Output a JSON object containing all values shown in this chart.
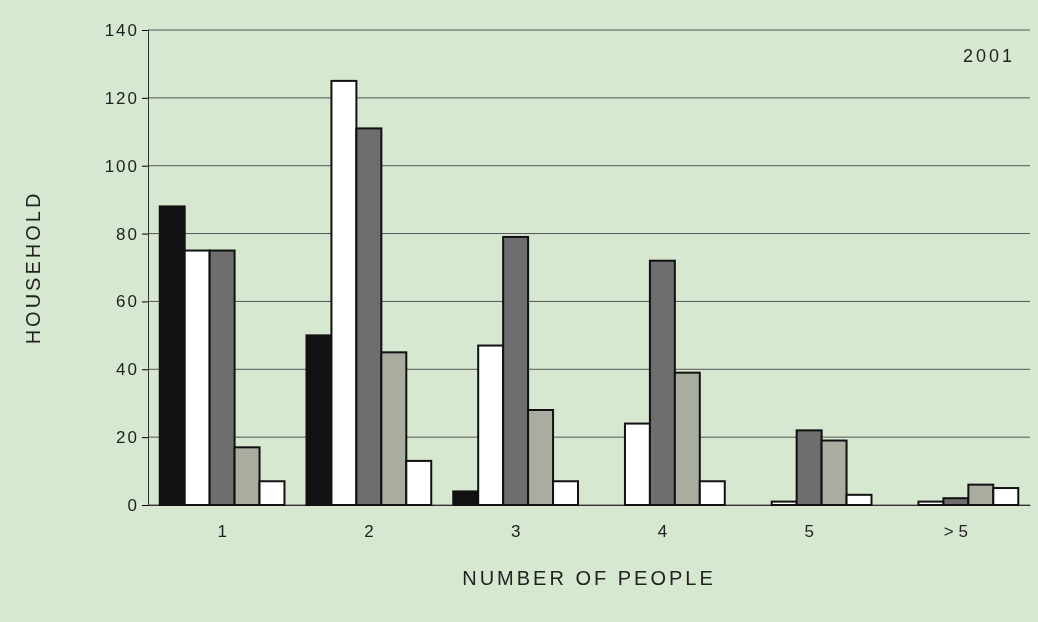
{
  "chart_data": {
    "type": "bar",
    "xlabel": "NUMBER OF PEOPLE",
    "ylabel": "HOUSEHOLD",
    "categories": [
      "1",
      "2",
      "3",
      "4",
      "5",
      "> 5"
    ],
    "series": [
      {
        "color": "#111111",
        "values": [
          88,
          50,
          4,
          0,
          0,
          0
        ]
      },
      {
        "color": "#ffffff",
        "values": [
          75,
          125,
          47,
          24,
          1,
          1
        ]
      },
      {
        "color": "#6e6e6e",
        "values": [
          75,
          111,
          79,
          72,
          22,
          2
        ]
      },
      {
        "color": "#a9ad9f",
        "values": [
          17,
          45,
          28,
          39,
          19,
          6
        ]
      },
      {
        "color": "#ffffff",
        "values": [
          7,
          13,
          7,
          7,
          3,
          5
        ]
      }
    ],
    "ylim": [
      0,
      140
    ],
    "yticks": [
      0,
      20,
      40,
      60,
      80,
      100,
      120,
      140
    ],
    "grid": "y",
    "annotations": [
      "2001"
    ]
  }
}
